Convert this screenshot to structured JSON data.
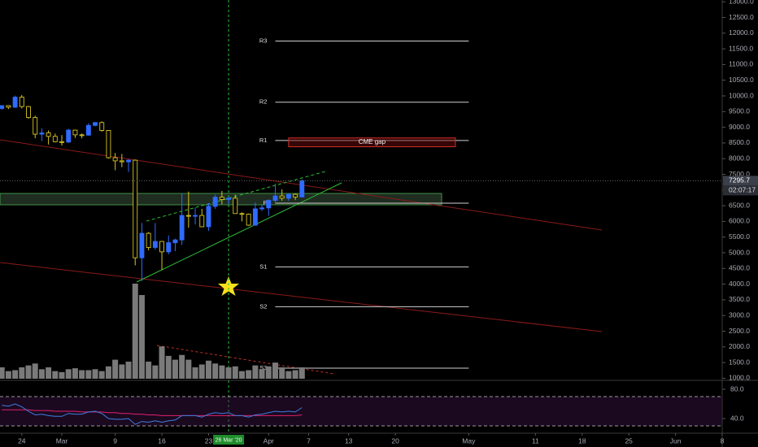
{
  "chart_data": {
    "type": "candlestick",
    "x": [
      "2020-02-21",
      "2020-02-22",
      "2020-02-23",
      "2020-02-24",
      "2020-02-25",
      "2020-02-26",
      "2020-02-27",
      "2020-02-28",
      "2020-02-29",
      "2020-03-01",
      "2020-03-02",
      "2020-03-03",
      "2020-03-04",
      "2020-03-05",
      "2020-03-06",
      "2020-03-07",
      "2020-03-08",
      "2020-03-09",
      "2020-03-10",
      "2020-03-11",
      "2020-03-12",
      "2020-03-13",
      "2020-03-14",
      "2020-03-15",
      "2020-03-16",
      "2020-03-17",
      "2020-03-18",
      "2020-03-19",
      "2020-03-20",
      "2020-03-21",
      "2020-03-22",
      "2020-03-23",
      "2020-03-24",
      "2020-03-25",
      "2020-03-26",
      "2020-03-27",
      "2020-03-28",
      "2020-03-29",
      "2020-03-30",
      "2020-03-31",
      "2020-04-01",
      "2020-04-02",
      "2020-04-03",
      "2020-04-04",
      "2020-04-05",
      "2020-04-06"
    ],
    "open": [
      9600,
      9690,
      9640,
      9960,
      9660,
      9310,
      8780,
      8820,
      8710,
      8540,
      8530,
      8910,
      8760,
      8750,
      9060,
      9150,
      8900,
      8030,
      7930,
      7900,
      7950,
      4840,
      5620,
      5170,
      5360,
      5030,
      5320,
      5410,
      6190,
      6180,
      6190,
      5830,
      6480,
      6770,
      6700,
      6740,
      6250,
      6230,
      5880,
      6400,
      6430,
      6670,
      6810,
      6740,
      6860,
      6780
    ],
    "high": [
      9700,
      9700,
      10010,
      10030,
      9680,
      9370,
      8960,
      8900,
      8800,
      8750,
      8950,
      8920,
      8800,
      9130,
      9170,
      9190,
      8900,
      8180,
      8150,
      7980,
      7970,
      5950,
      5660,
      5950,
      5380,
      5550,
      5450,
      6900,
      6950,
      6440,
      6400,
      6580,
      6850,
      6970,
      6790,
      6850,
      6290,
      6250,
      6600,
      6520,
      6700,
      7200,
      7020,
      6900,
      6890,
      7340
    ],
    "low": [
      9560,
      9580,
      9620,
      9600,
      9270,
      8650,
      8560,
      8450,
      8520,
      8420,
      8500,
      8660,
      8650,
      8730,
      9030,
      8860,
      8000,
      7630,
      7730,
      7580,
      4600,
      4100,
      5080,
      5100,
      4450,
      4950,
      5050,
      5250,
      5800,
      5900,
      5830,
      5700,
      6400,
      6550,
      6540,
      6250,
      6000,
      5860,
      5860,
      6330,
      6180,
      6600,
      6660,
      6660,
      6680,
      6760
    ],
    "close": [
      9690,
      9640,
      9960,
      9660,
      9310,
      8780,
      8820,
      8710,
      8540,
      8530,
      8910,
      8760,
      8750,
      9060,
      9150,
      8900,
      8030,
      7930,
      7900,
      7950,
      4840,
      5620,
      5170,
      5360,
      5030,
      5320,
      5410,
      6190,
      6180,
      6190,
      5830,
      6480,
      6770,
      6700,
      6740,
      6250,
      6230,
      5880,
      6400,
      6430,
      6670,
      6810,
      6740,
      6860,
      6780,
      7295.7
    ],
    "up_color": "#2f6bff",
    "down_color": "#d6c51d",
    "volume": [
      12,
      8,
      9,
      12,
      14,
      16,
      10,
      12,
      8,
      7,
      10,
      11,
      9,
      9,
      10,
      8,
      13,
      20,
      15,
      18,
      100,
      88,
      18,
      14,
      34,
      24,
      20,
      25,
      20,
      12,
      15,
      19,
      16,
      14,
      12,
      13,
      8,
      9,
      14,
      10,
      13,
      17,
      12,
      8,
      9,
      12
    ],
    "volume_color": "#7a7a7a",
    "vlim": [
      0,
      400
    ],
    "xlim": [
      "2020-02-20",
      "2020-06-08"
    ],
    "xticks": [
      {
        "value": "2020-02-24",
        "label": "24"
      },
      {
        "value": "2020-03-01",
        "label": "Mar"
      },
      {
        "value": "2020-03-09",
        "label": "9"
      },
      {
        "value": "2020-03-16",
        "label": "16"
      },
      {
        "value": "2020-03-23",
        "label": "23"
      },
      {
        "value": "2020-04-01",
        "label": "Apr"
      },
      {
        "value": "2020-04-07",
        "label": "7"
      },
      {
        "value": "2020-04-13",
        "label": "13"
      },
      {
        "value": "2020-04-20",
        "label": "20"
      },
      {
        "value": "2020-05-01",
        "label": "May"
      },
      {
        "value": "2020-05-11",
        "label": "11"
      },
      {
        "value": "2020-05-18",
        "label": "18"
      },
      {
        "value": "2020-05-25",
        "label": "25"
      },
      {
        "value": "2020-06-01",
        "label": "Jun"
      },
      {
        "value": "2020-06-08",
        "label": "8"
      }
    ],
    "ylim": [
      933,
      13057
    ],
    "yticks": [
      {
        "value": 1000,
        "label": "1000.0"
      },
      {
        "value": 1500,
        "label": "1500.0"
      },
      {
        "value": 2000,
        "label": "2000.0"
      },
      {
        "value": 2500,
        "label": "2500.0"
      },
      {
        "value": 3000,
        "label": "3000.0"
      },
      {
        "value": 3500,
        "label": "3500.0"
      },
      {
        "value": 4000,
        "label": "4000.0"
      },
      {
        "value": 4500,
        "label": "4500.0"
      },
      {
        "value": 5000,
        "label": "5000.0"
      },
      {
        "value": 5500,
        "label": "5500.0"
      },
      {
        "value": 6000,
        "label": "6000.0"
      },
      {
        "value": 6500,
        "label": "6500.0"
      },
      {
        "value": 7000,
        "label": "7000.0"
      },
      {
        "value": 7500,
        "label": "7500.0"
      },
      {
        "value": 8000,
        "label": "8000.0"
      },
      {
        "value": 8500,
        "label": "8500.0"
      },
      {
        "value": 9000,
        "label": "9000.0"
      },
      {
        "value": 9500,
        "label": "9500.0"
      },
      {
        "value": 10000,
        "label": "10000.0"
      },
      {
        "value": 10500,
        "label": "10500.0"
      },
      {
        "value": 11000,
        "label": "11000.0"
      },
      {
        "value": 11500,
        "label": "11500.0"
      },
      {
        "value": 12000,
        "label": "12000.0"
      },
      {
        "value": 12500,
        "label": "12500.0"
      },
      {
        "value": 13000,
        "label": "13000.0"
      }
    ],
    "pivots": [
      {
        "label": "R3",
        "value": 11750
      },
      {
        "label": "R2",
        "value": 9800
      },
      {
        "label": "R1",
        "value": 8580
      },
      {
        "label": "P",
        "value": 6580
      },
      {
        "label": "S1",
        "value": 4550
      },
      {
        "label": "S2",
        "value": 3280
      },
      {
        "label": "S3",
        "value": 1320
      }
    ],
    "pivot_from": "2020-04-02",
    "pivot_to": "2020-05-01",
    "pivot_color": "#d0d0d0",
    "cme_gap": {
      "label": "CME gap",
      "low": 8380,
      "high": 8660,
      "from": "2020-04-04",
      "to": "2020-04-29"
    },
    "last_price": 7295.7,
    "countdown": "02:07:17",
    "crosshair": {
      "x": "2020-03-26",
      "label": "26 Mar '20"
    },
    "rsi": {
      "ylim": [
        20,
        90
      ],
      "yticks": [
        {
          "value": 40,
          "label": "40.0"
        },
        {
          "value": 80,
          "label": "80.0"
        }
      ],
      "bands": [
        70,
        30
      ],
      "color": "#3d7ee0",
      "values": [
        58,
        57,
        60,
        56,
        50,
        45,
        46,
        44,
        43,
        43,
        47,
        46,
        46,
        49,
        50,
        47,
        40,
        39,
        39,
        40,
        32,
        36,
        35,
        37,
        35,
        37,
        38,
        44,
        44,
        44,
        42,
        46,
        48,
        47,
        48,
        44,
        44,
        42,
        45,
        46,
        48,
        50,
        49,
        50,
        49,
        55
      ],
      "ma_color": "#e0206a",
      "ma_values": [
        52,
        52,
        52,
        52,
        52,
        51,
        51,
        51,
        50,
        50,
        50,
        50,
        49,
        49,
        49,
        49,
        48,
        48,
        47,
        47,
        46,
        46,
        45,
        45,
        44,
        44,
        44,
        44,
        44,
        44,
        44,
        44,
        44,
        44,
        44,
        44,
        44,
        44,
        44,
        44,
        44,
        44,
        44,
        44,
        44,
        45
      ]
    }
  }
}
